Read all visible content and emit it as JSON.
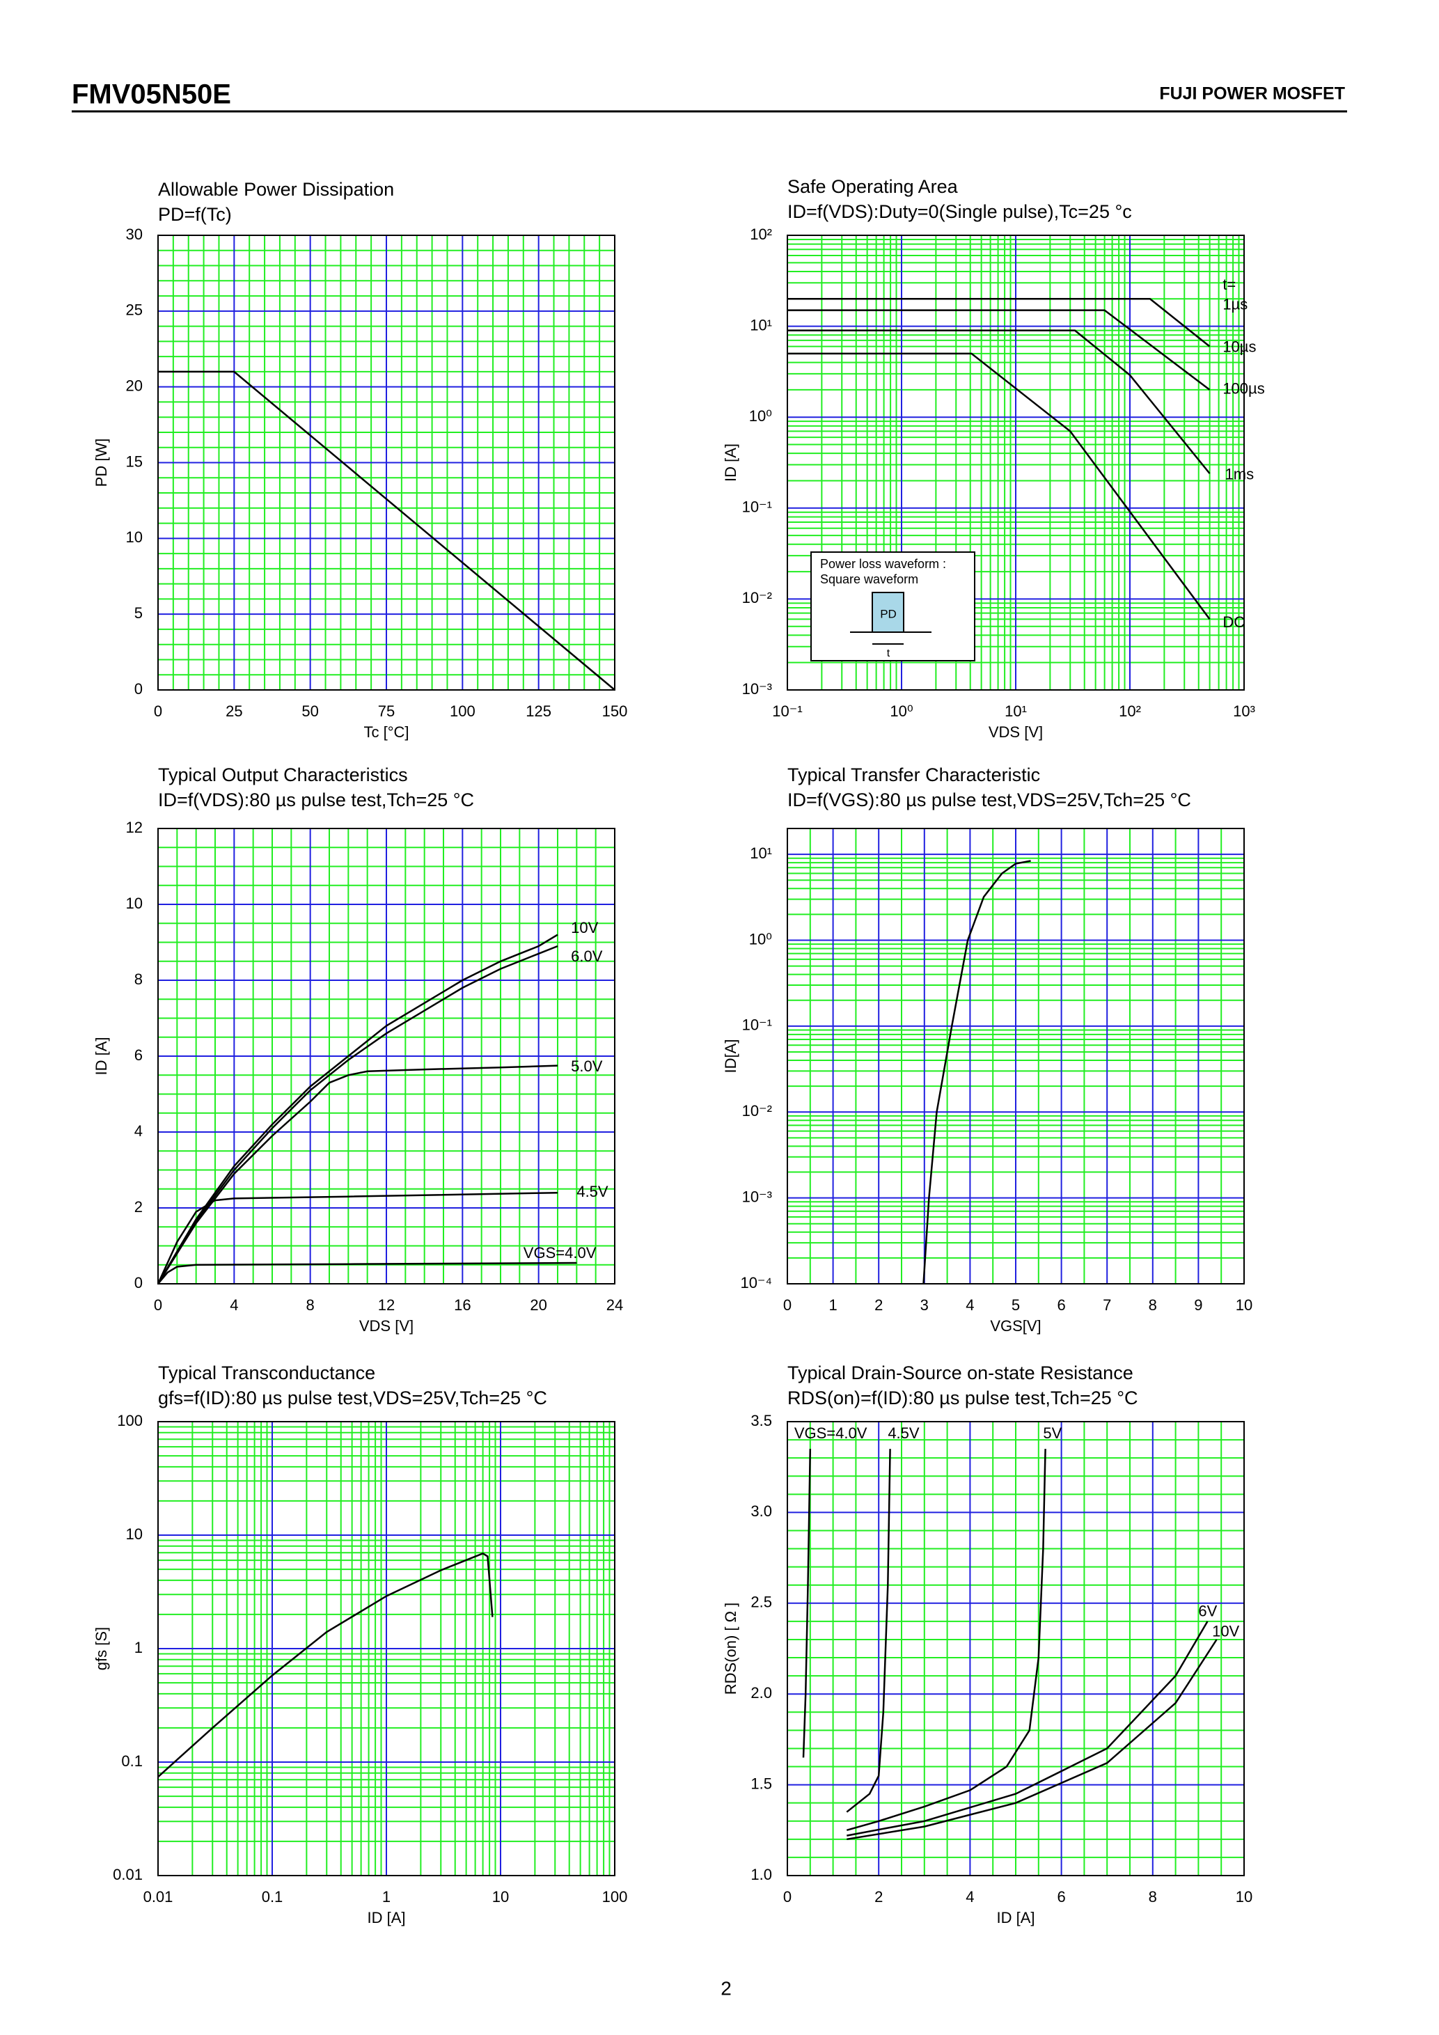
{
  "header": {
    "part": "FMV05N50E",
    "brand": "FUJI POWER MOSFET"
  },
  "page_number": "2",
  "chart_data": [
    {
      "type": "line",
      "title": "Allowable Power Dissipation",
      "subtitle": "PD=f(Tc)",
      "xlabel": "Tc [°C]",
      "ylabel": "PD [W]",
      "xscale": "linear",
      "yscale": "linear",
      "xlim": [
        0,
        150
      ],
      "xticks": [
        0,
        25,
        50,
        75,
        100,
        125,
        150
      ],
      "ylim": [
        0,
        30
      ],
      "yticks": [
        0,
        5,
        10,
        15,
        20,
        25,
        30
      ],
      "grid": true,
      "grid_color": "#2020e0",
      "minor_grid_color": "#22ee22",
      "series": [
        {
          "color": "#000000",
          "x": [
            0,
            25,
            150
          ],
          "y": [
            21,
            21,
            0
          ]
        }
      ]
    },
    {
      "type": "line",
      "title": "Safe Operating Area",
      "subtitle": "ID=f(VDS):Duty=0(Single pulse),Tc=25 °c",
      "xlabel": "VDS [V]",
      "ylabel": "ID [A]",
      "xscale": "log",
      "yscale": "log",
      "xlim": [
        0.1,
        1000
      ],
      "xticks": [
        {
          "value": 0.1,
          "label": "10⁻¹"
        },
        {
          "value": 1,
          "label": "10⁰"
        },
        {
          "value": 10,
          "label": "10¹"
        },
        {
          "value": 100,
          "label": "10²"
        },
        {
          "value": 1000,
          "label": "10³"
        }
      ],
      "ylim": [
        0.001,
        100
      ],
      "yticks": [
        {
          "value": 0.001,
          "label": "10⁻³"
        },
        {
          "value": 0.01,
          "label": "10⁻²"
        },
        {
          "value": 0.1,
          "label": "10⁻¹"
        },
        {
          "value": 1,
          "label": "10⁰"
        },
        {
          "value": 10,
          "label": "10¹"
        },
        {
          "value": 100,
          "label": "10²"
        }
      ],
      "grid": true,
      "grid_color": "#2020e0",
      "minor_grid_color": "#22ee22",
      "series": [
        {
          "color": "#000000",
          "x": [
            0.1,
            150,
            500
          ],
          "y": [
            20,
            20,
            6
          ]
        },
        {
          "color": "#000000",
          "x": [
            0.1,
            60,
            500
          ],
          "y": [
            15,
            15,
            2
          ]
        },
        {
          "color": "#000000",
          "x": [
            0.1,
            33,
            100,
            500
          ],
          "y": [
            9,
            9,
            2.9,
            0.24
          ]
        },
        {
          "color": "#000000",
          "x": [
            0.1,
            4.1,
            30,
            500
          ],
          "y": [
            5,
            5,
            0.7,
            0.006
          ]
        }
      ],
      "annotations": [
        {
          "text": "t=",
          "x": 650,
          "y": 28
        },
        {
          "text": "1µs",
          "x": 650,
          "y": 17
        },
        {
          "text": "10µs",
          "x": 650,
          "y": 5.8
        },
        {
          "text": "100µs",
          "x": 650,
          "y": 2
        },
        {
          "text": "1ms",
          "x": 680,
          "y": 0.23
        },
        {
          "text": "DC",
          "x": 650,
          "y": 0.0054
        }
      ],
      "inset": {
        "lines": [
          "Power loss waveform :",
          "Square waveform"
        ],
        "pd": "PD",
        "t": "t"
      }
    },
    {
      "type": "line",
      "title": "Typical Output Characteristics",
      "subtitle": "ID=f(VDS):80 µs pulse test,Tch=25 °C",
      "xlabel": "VDS [V]",
      "ylabel": "ID [A]",
      "xscale": "linear",
      "yscale": "linear",
      "xlim": [
        0,
        24
      ],
      "xticks": [
        0,
        4,
        8,
        12,
        16,
        20,
        24
      ],
      "ylim": [
        0,
        12
      ],
      "yticks": [
        0,
        2,
        4,
        6,
        8,
        10,
        12
      ],
      "grid": true,
      "grid_color": "#2020e0",
      "minor_grid_color": "#22ee22",
      "series": [
        {
          "color": "#000000",
          "x": [
            0,
            2,
            4,
            6,
            8,
            10,
            12,
            14,
            16,
            18,
            20,
            21
          ],
          "y": [
            0,
            1.7,
            3.1,
            4.2,
            5.2,
            6,
            6.8,
            7.4,
            8,
            8.5,
            8.9,
            9.2
          ]
        },
        {
          "color": "#000000",
          "x": [
            0,
            2,
            4,
            6,
            8,
            10,
            12,
            14,
            16,
            18,
            20,
            21
          ],
          "y": [
            0,
            1.65,
            3,
            4.1,
            5.1,
            5.9,
            6.6,
            7.2,
            7.8,
            8.3,
            8.7,
            8.9
          ]
        },
        {
          "color": "#000000",
          "x": [
            0,
            2,
            4,
            6,
            8,
            9,
            10,
            11,
            14,
            18,
            21
          ],
          "y": [
            0,
            1.6,
            2.9,
            3.9,
            4.8,
            5.3,
            5.5,
            5.6,
            5.65,
            5.7,
            5.75
          ]
        },
        {
          "color": "#000000",
          "x": [
            0,
            1,
            2,
            3,
            4,
            10,
            21
          ],
          "y": [
            0,
            1.1,
            1.9,
            2.2,
            2.25,
            2.3,
            2.4
          ]
        },
        {
          "color": "#000000",
          "x": [
            0,
            0.5,
            1,
            2,
            10,
            22
          ],
          "y": [
            0,
            0.3,
            0.45,
            0.5,
            0.52,
            0.55
          ]
        }
      ],
      "annotations": [
        {
          "text": "10V",
          "x": 21.7,
          "y": 9.35
        },
        {
          "text": "6.0V",
          "x": 21.7,
          "y": 8.6
        },
        {
          "text": "5.0V",
          "x": 21.7,
          "y": 5.7
        },
        {
          "text": "4.5V",
          "x": 22,
          "y": 2.4
        },
        {
          "text": "VGS=4.0V",
          "x": 19.2,
          "y": 0.79
        }
      ]
    },
    {
      "type": "line",
      "title": "Typical Transfer Characteristic",
      "subtitle": "ID=f(VGS):80 µs pulse test,VDS=25V,Tch=25 °C",
      "xlabel": "VGS[V]",
      "ylabel": "ID[A]",
      "xscale": "linear",
      "yscale": "log",
      "xlim": [
        0,
        10
      ],
      "xticks": [
        0,
        1,
        2,
        3,
        4,
        5,
        6,
        7,
        8,
        9,
        10
      ],
      "ylim": [
        0.0001,
        20
      ],
      "yticks": [
        {
          "value": 0.0001,
          "label": "10⁻⁴"
        },
        {
          "value": 0.001,
          "label": "10⁻³"
        },
        {
          "value": 0.01,
          "label": "10⁻²"
        },
        {
          "value": 0.1,
          "label": "10⁻¹"
        },
        {
          "value": 1,
          "label": "10⁰"
        },
        {
          "value": 10,
          "label": "10¹"
        }
      ],
      "grid": true,
      "grid_color": "#2020e0",
      "minor_grid_color": "#22ee22",
      "series": [
        {
          "color": "#000000",
          "x": [
            2.98,
            3.1,
            3.27,
            3.6,
            3.95,
            4.3,
            4.7,
            5.0,
            5.33
          ],
          "y": [
            0.0001,
            0.001,
            0.01,
            0.1,
            1,
            3.2,
            6,
            7.8,
            8.4
          ]
        }
      ]
    },
    {
      "type": "line",
      "title": "Typical Transconductance",
      "subtitle": "gfs=f(ID):80 µs pulse test,VDS=25V,Tch=25 °C",
      "xlabel": "ID [A]",
      "ylabel": "gfs [S]",
      "xscale": "log",
      "yscale": "log",
      "xlim": [
        0.01,
        100
      ],
      "xticks": [
        0.01,
        0.1,
        1,
        10,
        100
      ],
      "ylim": [
        0.01,
        100
      ],
      "yticks": [
        0.01,
        0.1,
        1,
        10,
        100
      ],
      "grid": true,
      "grid_color": "#2020e0",
      "minor_grid_color": "#22ee22",
      "series": [
        {
          "color": "#000000",
          "x": [
            0.01,
            0.03,
            0.1,
            0.3,
            1,
            3,
            7,
            7.7,
            8.5
          ],
          "y": [
            0.074,
            0.2,
            0.58,
            1.4,
            2.9,
            4.9,
            6.9,
            6.5,
            1.9
          ]
        }
      ]
    },
    {
      "type": "line",
      "title": "Typical Drain-Source on-state Resistance",
      "subtitle": "RDS(on)=f(ID):80  µs pulse test,Tch=25 °C",
      "xlabel": "ID [A]",
      "ylabel": "RDS(on) [ Ω ]",
      "xscale": "linear",
      "yscale": "linear",
      "xlim": [
        0,
        10
      ],
      "xticks": [
        0,
        2,
        4,
        6,
        8,
        10
      ],
      "ylim": [
        1,
        3.5
      ],
      "yticks": [
        {
          "value": 1,
          "label": "1.0"
        },
        1.5,
        {
          "value": 2,
          "label": "2.0"
        },
        2.5,
        {
          "value": 3,
          "label": "3.0"
        },
        3.5
      ],
      "grid": true,
      "grid_color": "#2020e0",
      "minor_grid_color": "#22ee22",
      "series": [
        {
          "color": "#000000",
          "x": [
            0.35,
            0.4,
            0.45,
            0.5
          ],
          "y": [
            1.65,
            2.0,
            2.6,
            3.35
          ]
        },
        {
          "color": "#000000",
          "x": [
            1.3,
            1.8,
            2.0,
            2.1,
            2.2,
            2.25
          ],
          "y": [
            1.35,
            1.45,
            1.55,
            1.9,
            2.6,
            3.35
          ]
        },
        {
          "color": "#000000",
          "x": [
            1.3,
            2,
            3,
            4,
            4.8,
            5.3,
            5.5,
            5.6,
            5.65
          ],
          "y": [
            1.25,
            1.3,
            1.38,
            1.47,
            1.6,
            1.8,
            2.2,
            2.8,
            3.35
          ]
        },
        {
          "color": "#000000",
          "x": [
            1.3,
            3,
            5,
            7,
            8.5,
            9.2
          ],
          "y": [
            1.22,
            1.3,
            1.45,
            1.7,
            2.1,
            2.4
          ]
        },
        {
          "color": "#000000",
          "x": [
            1.3,
            3,
            5,
            7,
            8.5,
            9.4
          ],
          "y": [
            1.2,
            1.27,
            1.4,
            1.62,
            1.95,
            2.3
          ]
        }
      ],
      "annotations": [
        {
          "text": "VGS=4.0V",
          "x": 0.15,
          "y": 3.43
        },
        {
          "text": "4.5V",
          "x": 2.2,
          "y": 3.43
        },
        {
          "text": "5V",
          "x": 5.6,
          "y": 3.43
        },
        {
          "text": "6V",
          "x": 9.0,
          "y": 2.45
        },
        {
          "text": "10V",
          "x": 9.3,
          "y": 2.34
        }
      ]
    }
  ]
}
